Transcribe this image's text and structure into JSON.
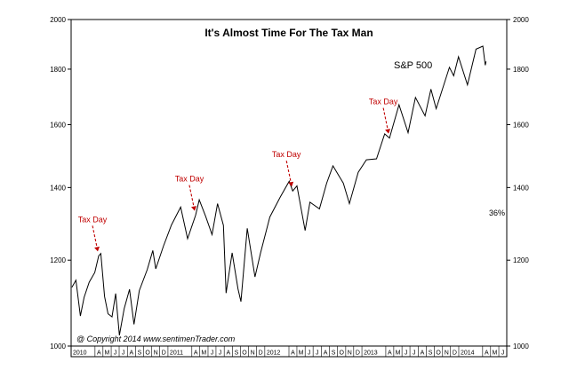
{
  "chart_data": {
    "type": "line",
    "title": "It's Almost Time For The Tax Man",
    "series_label": "S&P 500",
    "pct_label": "36%",
    "copyright": "@ Copyright 2014   www.sentimenTrader.com",
    "yscale": "log",
    "ylim": [
      1000,
      2000
    ],
    "yticks": [
      {
        "value": 1000,
        "label": "1000"
      },
      {
        "value": 1200,
        "label": "1200"
      },
      {
        "value": 1400,
        "label": "1400"
      },
      {
        "value": 1600,
        "label": "1600"
      },
      {
        "value": 1800,
        "label": "1800"
      },
      {
        "value": 2000,
        "label": "2000"
      }
    ],
    "xlim": [
      "2010-01-01",
      "2014-07-01"
    ],
    "month_ticks": [
      {
        "date": "2010-01-01",
        "label": "2010"
      },
      {
        "date": "2010-04-01",
        "label": "A"
      },
      {
        "date": "2010-05-01",
        "label": "M"
      },
      {
        "date": "2010-06-01",
        "label": "J"
      },
      {
        "date": "2010-07-01",
        "label": "J"
      },
      {
        "date": "2010-08-01",
        "label": "A"
      },
      {
        "date": "2010-09-01",
        "label": "S"
      },
      {
        "date": "2010-10-01",
        "label": "O"
      },
      {
        "date": "2010-11-01",
        "label": "N"
      },
      {
        "date": "2010-12-01",
        "label": "D"
      },
      {
        "date": "2011-01-01",
        "label": "2011"
      },
      {
        "date": "2011-04-01",
        "label": "A"
      },
      {
        "date": "2011-05-01",
        "label": "M"
      },
      {
        "date": "2011-06-01",
        "label": "J"
      },
      {
        "date": "2011-07-01",
        "label": "J"
      },
      {
        "date": "2011-08-01",
        "label": "A"
      },
      {
        "date": "2011-09-01",
        "label": "S"
      },
      {
        "date": "2011-10-01",
        "label": "O"
      },
      {
        "date": "2011-11-01",
        "label": "N"
      },
      {
        "date": "2011-12-01",
        "label": "D"
      },
      {
        "date": "2012-01-01",
        "label": "2012"
      },
      {
        "date": "2012-04-01",
        "label": "A"
      },
      {
        "date": "2012-05-01",
        "label": "M"
      },
      {
        "date": "2012-06-01",
        "label": "J"
      },
      {
        "date": "2012-07-01",
        "label": "J"
      },
      {
        "date": "2012-08-01",
        "label": "A"
      },
      {
        "date": "2012-09-01",
        "label": "S"
      },
      {
        "date": "2012-10-01",
        "label": "O"
      },
      {
        "date": "2012-11-01",
        "label": "N"
      },
      {
        "date": "2012-12-01",
        "label": "D"
      },
      {
        "date": "2013-01-01",
        "label": "2013"
      },
      {
        "date": "2013-04-01",
        "label": "A"
      },
      {
        "date": "2013-05-01",
        "label": "M"
      },
      {
        "date": "2013-06-01",
        "label": "J"
      },
      {
        "date": "2013-07-01",
        "label": "J"
      },
      {
        "date": "2013-08-01",
        "label": "A"
      },
      {
        "date": "2013-09-01",
        "label": "S"
      },
      {
        "date": "2013-10-01",
        "label": "O"
      },
      {
        "date": "2013-11-01",
        "label": "N"
      },
      {
        "date": "2013-12-01",
        "label": "D"
      },
      {
        "date": "2014-01-01",
        "label": "2014"
      },
      {
        "date": "2014-04-01",
        "label": "A"
      },
      {
        "date": "2014-05-01",
        "label": "M"
      },
      {
        "date": "2014-06-01",
        "label": "J"
      }
    ],
    "annotations": [
      {
        "text": "Tax Day",
        "date": "2010-04-15",
        "value": 1211
      },
      {
        "text": "Tax Day",
        "date": "2011-04-15",
        "value": 1320
      },
      {
        "text": "Tax Day",
        "date": "2012-04-15",
        "value": 1390
      },
      {
        "text": "Tax Day",
        "date": "2013-04-15",
        "value": 1555
      }
    ],
    "series": [
      {
        "values": [
          [
            "2010-01-04",
            1133
          ],
          [
            "2010-01-19",
            1150
          ],
          [
            "2010-02-05",
            1066
          ],
          [
            "2010-02-19",
            1109
          ],
          [
            "2010-03-10",
            1145
          ],
          [
            "2010-03-31",
            1169
          ],
          [
            "2010-04-15",
            1211
          ],
          [
            "2010-04-23",
            1217
          ],
          [
            "2010-05-07",
            1111
          ],
          [
            "2010-05-20",
            1071
          ],
          [
            "2010-06-04",
            1064
          ],
          [
            "2010-06-18",
            1118
          ],
          [
            "2010-07-02",
            1023
          ],
          [
            "2010-07-20",
            1083
          ],
          [
            "2010-08-09",
            1128
          ],
          [
            "2010-08-26",
            1047
          ],
          [
            "2010-09-15",
            1125
          ],
          [
            "2010-10-15",
            1176
          ],
          [
            "2010-11-05",
            1225
          ],
          [
            "2010-11-16",
            1178
          ],
          [
            "2010-12-15",
            1236
          ],
          [
            "2011-01-14",
            1293
          ],
          [
            "2011-02-18",
            1343
          ],
          [
            "2011-03-16",
            1256
          ],
          [
            "2011-04-15",
            1320
          ],
          [
            "2011-04-29",
            1364
          ],
          [
            "2011-05-23",
            1317
          ],
          [
            "2011-06-16",
            1267
          ],
          [
            "2011-07-07",
            1353
          ],
          [
            "2011-07-29",
            1292
          ],
          [
            "2011-08-08",
            1119
          ],
          [
            "2011-08-31",
            1219
          ],
          [
            "2011-09-22",
            1129
          ],
          [
            "2011-10-03",
            1099
          ],
          [
            "2011-10-27",
            1284
          ],
          [
            "2011-11-25",
            1158
          ],
          [
            "2011-12-16",
            1219
          ],
          [
            "2012-01-20",
            1315
          ],
          [
            "2012-02-28",
            1372
          ],
          [
            "2012-04-02",
            1419
          ],
          [
            "2012-04-15",
            1390
          ],
          [
            "2012-05-01",
            1405
          ],
          [
            "2012-06-01",
            1278
          ],
          [
            "2012-06-19",
            1357
          ],
          [
            "2012-07-25",
            1338
          ],
          [
            "2012-08-21",
            1413
          ],
          [
            "2012-09-14",
            1466
          ],
          [
            "2012-10-23",
            1413
          ],
          [
            "2012-11-15",
            1353
          ],
          [
            "2012-12-18",
            1446
          ],
          [
            "2013-01-18",
            1485
          ],
          [
            "2013-02-25",
            1488
          ],
          [
            "2013-03-28",
            1569
          ],
          [
            "2013-04-15",
            1555
          ],
          [
            "2013-05-21",
            1669
          ],
          [
            "2013-06-24",
            1573
          ],
          [
            "2013-07-22",
            1695
          ],
          [
            "2013-08-27",
            1630
          ],
          [
            "2013-09-18",
            1725
          ],
          [
            "2013-10-08",
            1655
          ],
          [
            "2013-11-27",
            1807
          ],
          [
            "2013-12-13",
            1775
          ],
          [
            "2013-12-31",
            1848
          ],
          [
            "2014-02-03",
            1741
          ],
          [
            "2014-03-07",
            1878
          ],
          [
            "2014-04-02",
            1890
          ],
          [
            "2014-04-11",
            1815
          ],
          [
            "2014-04-14",
            1830
          ]
        ]
      }
    ]
  }
}
